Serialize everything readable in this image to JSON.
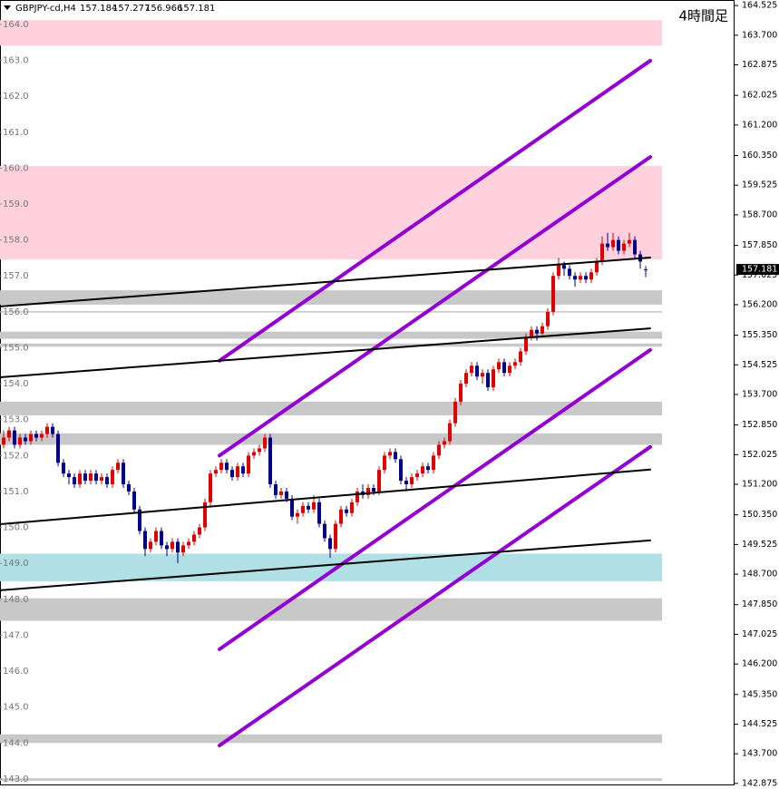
{
  "chart_data": {
    "type": "candlestick",
    "symbol": "GBPJPY-cd,H4",
    "timeframe_label": "4時間足",
    "ylim": [
      142.82,
      164.68
    ],
    "xlim": [
      -0.67,
      134.33
    ],
    "yticks": [
      164.525,
      {
        "value": 163.7,
        "label": "163.700"
      },
      162.875,
      162.025,
      {
        "value": 161.2,
        "label": "161.200"
      },
      {
        "value": 160.35,
        "label": "160.350"
      },
      159.525,
      {
        "value": 158.7,
        "label": "158.700"
      },
      {
        "value": 157.85,
        "label": "157.850"
      },
      157.025,
      {
        "value": 156.2,
        "label": "156.200"
      },
      {
        "value": 155.35,
        "label": "155.350"
      },
      154.525,
      {
        "value": 153.7,
        "label": "153.700"
      },
      {
        "value": 152.85,
        "label": "152.850"
      },
      152.025,
      {
        "value": 151.2,
        "label": "151.200"
      },
      {
        "value": 150.35,
        "label": "150.350"
      },
      149.525,
      {
        "value": 148.7,
        "label": "148.700"
      },
      {
        "value": 147.85,
        "label": "147.850"
      },
      147.025,
      {
        "value": 146.2,
        "label": "146.200"
      },
      {
        "value": 145.35,
        "label": "145.350"
      },
      144.525,
      {
        "value": 143.7,
        "label": "143.700"
      },
      142.875
    ],
    "inner_yticks": [
      {
        "value": 164,
        "label": "164.0"
      },
      {
        "value": 163,
        "label": "163.0"
      },
      {
        "value": 162,
        "label": "162.0"
      },
      {
        "value": 161,
        "label": "161.0"
      },
      {
        "value": 160,
        "label": "160.0"
      },
      {
        "value": 159,
        "label": "159.0"
      },
      {
        "value": 158,
        "label": "158.0"
      },
      {
        "value": 157,
        "label": "157.0"
      },
      {
        "value": 156,
        "label": "156.0"
      },
      {
        "value": 155,
        "label": "155.0"
      },
      {
        "value": 154,
        "label": "154.0"
      },
      {
        "value": 153,
        "label": "153.0"
      },
      {
        "value": 152,
        "label": "152.0"
      },
      {
        "value": 151,
        "label": "151.0"
      },
      {
        "value": 150,
        "label": "150.0"
      },
      {
        "value": 149,
        "label": "149.0"
      },
      {
        "value": 148,
        "label": "148.0"
      },
      {
        "value": 147,
        "label": "147.0"
      },
      {
        "value": 146,
        "label": "146.0"
      },
      {
        "value": 145,
        "label": "145.0"
      },
      {
        "value": 144,
        "label": "144.0"
      },
      {
        "value": 143,
        "label": "143.0"
      }
    ],
    "up_color": "#e00000",
    "down_color": "#00008b",
    "zones": [
      {
        "from": 163.41,
        "to": 164.12,
        "color": "#ffd1dc"
      },
      {
        "from": 157.46,
        "to": 160.06,
        "color": "#ffd1dc"
      },
      {
        "from": 156.2,
        "to": 156.6,
        "color": "#c8c8c8"
      },
      {
        "from": 155.98,
        "to": 156.02,
        "color": "#c8c8c8"
      },
      {
        "from": 155.25,
        "to": 155.45,
        "color": "#c8c8c8"
      },
      {
        "from": 155.03,
        "to": 155.12,
        "color": "#c8c8c8"
      },
      {
        "from": 153.12,
        "to": 153.5,
        "color": "#c8c8c8"
      },
      {
        "from": 152.3,
        "to": 152.62,
        "color": "#c8c8c8"
      },
      {
        "from": 148.5,
        "to": 149.27,
        "color": "#b0e0e6"
      },
      {
        "from": 147.4,
        "to": 148.03,
        "color": "#c8c8c8"
      },
      {
        "from": 144.0,
        "to": 144.24,
        "color": "#c8c8c8"
      },
      {
        "from": 142.95,
        "to": 143.02,
        "color": "#c8c8c8"
      }
    ],
    "lines": [
      {
        "points": [
          [
            39.67,
            154.64
          ],
          [
            118.83,
            162.99
          ]
        ],
        "color": "#9400d3",
        "width": 4
      },
      {
        "points": [
          [
            39.67,
            152.0
          ],
          [
            118.83,
            160.31
          ]
        ],
        "color": "#9400d3",
        "width": 4
      },
      {
        "points": [
          [
            39.67,
            146.61
          ],
          [
            118.83,
            154.94
          ]
        ],
        "color": "#9400d3",
        "width": 4
      },
      {
        "points": [
          [
            39.67,
            143.93
          ],
          [
            118.83,
            152.24
          ]
        ],
        "color": "#9400d3",
        "width": 4
      },
      {
        "points": [
          [
            -0.67,
            156.15
          ],
          [
            118.83,
            157.51
          ]
        ],
        "color": "#000000",
        "width": 2
      },
      {
        "points": [
          [
            -0.67,
            154.18
          ],
          [
            118.83,
            155.54
          ]
        ],
        "color": "#000000",
        "width": 2
      },
      {
        "points": [
          [
            -0.67,
            150.09
          ],
          [
            118.83,
            151.61
          ]
        ],
        "color": "#000000",
        "width": 2
      },
      {
        "points": [
          [
            -0.67,
            148.25
          ],
          [
            118.83,
            149.64
          ]
        ],
        "color": "#000000",
        "width": 2
      }
    ],
    "candles": [
      [
        152.3,
        152.7,
        152.2,
        152.5
      ],
      [
        152.5,
        152.8,
        152.4,
        152.7
      ],
      [
        152.7,
        152.8,
        152.2,
        152.3
      ],
      [
        152.3,
        152.6,
        152.2,
        152.5
      ],
      [
        152.5,
        152.6,
        152.3,
        152.4
      ],
      [
        152.4,
        152.7,
        152.3,
        152.6
      ],
      [
        152.6,
        152.7,
        152.4,
        152.5
      ],
      [
        152.5,
        152.7,
        152.4,
        152.6
      ],
      [
        152.6,
        152.9,
        152.5,
        152.8
      ],
      [
        152.8,
        152.9,
        152.5,
        152.6
      ],
      [
        152.6,
        152.7,
        151.7,
        151.8
      ],
      [
        151.8,
        151.9,
        151.4,
        151.5
      ],
      [
        151.5,
        151.6,
        151.2,
        151.4
      ],
      [
        151.4,
        151.5,
        151.1,
        151.2
      ],
      [
        151.2,
        151.6,
        151.1,
        151.5
      ],
      [
        151.5,
        151.6,
        151.2,
        151.3
      ],
      [
        151.3,
        151.6,
        151.2,
        151.5
      ],
      [
        151.5,
        151.6,
        151.2,
        151.3
      ],
      [
        151.3,
        151.5,
        151.2,
        151.4
      ],
      [
        151.4,
        151.5,
        151.1,
        151.2
      ],
      [
        151.2,
        151.7,
        151.1,
        151.6
      ],
      [
        151.6,
        151.9,
        151.5,
        151.8
      ],
      [
        151.8,
        151.9,
        151.1,
        151.2
      ],
      [
        151.2,
        151.3,
        150.9,
        151.0
      ],
      [
        151.0,
        151.1,
        150.4,
        150.5
      ],
      [
        150.5,
        150.6,
        149.8,
        149.9
      ],
      [
        149.9,
        150.0,
        149.2,
        149.4
      ],
      [
        149.4,
        149.7,
        149.3,
        149.6
      ],
      [
        149.6,
        150.0,
        149.5,
        149.9
      ],
      [
        149.9,
        150.0,
        149.4,
        149.5
      ],
      [
        149.5,
        149.6,
        149.2,
        149.4
      ],
      [
        149.4,
        149.7,
        149.3,
        149.6
      ],
      [
        149.6,
        149.7,
        149.0,
        149.3
      ],
      [
        149.3,
        149.6,
        149.2,
        149.5
      ],
      [
        149.5,
        149.7,
        149.4,
        149.6
      ],
      [
        149.6,
        149.9,
        149.5,
        149.8
      ],
      [
        149.8,
        150.1,
        149.7,
        150.0
      ],
      [
        150.0,
        150.8,
        149.9,
        150.7
      ],
      [
        150.7,
        151.6,
        150.6,
        151.5
      ],
      [
        151.5,
        151.7,
        151.4,
        151.6
      ],
      [
        151.6,
        151.9,
        151.5,
        151.8
      ],
      [
        151.8,
        151.9,
        151.5,
        151.6
      ],
      [
        151.6,
        151.7,
        151.3,
        151.4
      ],
      [
        151.4,
        151.8,
        151.3,
        151.7
      ],
      [
        151.7,
        151.8,
        151.4,
        151.5
      ],
      [
        151.5,
        152.1,
        151.4,
        152.0
      ],
      [
        152.0,
        152.2,
        151.9,
        152.1
      ],
      [
        152.1,
        152.3,
        152.0,
        152.2
      ],
      [
        152.2,
        152.6,
        152.1,
        152.5
      ],
      [
        152.5,
        152.6,
        151.1,
        151.2
      ],
      [
        151.2,
        151.3,
        150.8,
        150.9
      ],
      [
        150.9,
        151.1,
        150.8,
        151.0
      ],
      [
        151.0,
        151.1,
        150.7,
        150.8
      ],
      [
        150.8,
        150.9,
        150.2,
        150.3
      ],
      [
        150.3,
        150.5,
        150.1,
        150.4
      ],
      [
        150.4,
        150.7,
        150.3,
        150.6
      ],
      [
        150.6,
        150.7,
        150.4,
        150.5
      ],
      [
        150.5,
        150.9,
        150.4,
        150.7
      ],
      [
        150.7,
        150.8,
        150.0,
        150.1
      ],
      [
        150.1,
        150.2,
        149.6,
        149.7
      ],
      [
        149.7,
        149.8,
        149.15,
        149.4
      ],
      [
        149.4,
        150.2,
        149.3,
        150.1
      ],
      [
        150.1,
        150.6,
        150.0,
        150.5
      ],
      [
        150.5,
        150.6,
        150.3,
        150.4
      ],
      [
        150.4,
        150.8,
        150.3,
        150.7
      ],
      [
        150.7,
        151.1,
        150.6,
        151.0
      ],
      [
        151.0,
        151.2,
        150.8,
        150.9
      ],
      [
        150.9,
        151.2,
        150.8,
        151.1
      ],
      [
        151.1,
        151.2,
        150.9,
        151.0
      ],
      [
        151.0,
        151.7,
        150.9,
        151.6
      ],
      [
        151.6,
        152.1,
        151.5,
        152.0
      ],
      [
        152.0,
        152.2,
        151.9,
        152.1
      ],
      [
        152.1,
        152.2,
        151.8,
        151.9
      ],
      [
        151.9,
        152.0,
        151.2,
        151.3
      ],
      [
        151.3,
        151.4,
        151.0,
        151.2
      ],
      [
        151.2,
        151.5,
        151.1,
        151.4
      ],
      [
        151.4,
        151.6,
        151.3,
        151.5
      ],
      [
        151.5,
        151.8,
        151.4,
        151.7
      ],
      [
        151.7,
        151.8,
        151.5,
        151.6
      ],
      [
        151.6,
        152.1,
        151.5,
        152.0
      ],
      [
        152.0,
        152.4,
        151.9,
        152.3
      ],
      [
        152.3,
        152.5,
        152.2,
        152.4
      ],
      [
        152.4,
        153.0,
        152.3,
        152.9
      ],
      [
        152.9,
        153.6,
        152.8,
        153.5
      ],
      [
        153.5,
        154.1,
        153.4,
        154.0
      ],
      [
        154.0,
        154.4,
        153.9,
        154.3
      ],
      [
        154.3,
        154.6,
        154.2,
        154.5
      ],
      [
        154.5,
        154.6,
        154.1,
        154.2
      ],
      [
        154.2,
        154.4,
        154.0,
        154.3
      ],
      [
        154.3,
        154.4,
        153.8,
        153.9
      ],
      [
        153.9,
        154.5,
        153.8,
        154.4
      ],
      [
        154.4,
        154.7,
        154.3,
        154.6
      ],
      [
        154.6,
        154.7,
        154.2,
        154.3
      ],
      [
        154.3,
        154.6,
        154.2,
        154.5
      ],
      [
        154.5,
        154.7,
        154.4,
        154.6
      ],
      [
        154.6,
        155.0,
        154.5,
        154.9
      ],
      [
        154.9,
        155.4,
        154.8,
        155.3
      ],
      [
        155.3,
        155.6,
        155.2,
        155.5
      ],
      [
        155.5,
        155.6,
        155.2,
        155.4
      ],
      [
        155.4,
        155.7,
        155.3,
        155.6
      ],
      [
        155.6,
        156.1,
        155.5,
        156.0
      ],
      [
        156.0,
        157.1,
        155.9,
        157.0
      ],
      [
        157.0,
        157.5,
        156.9,
        157.3
      ],
      [
        157.3,
        157.4,
        157.0,
        157.2
      ],
      [
        157.2,
        157.3,
        156.9,
        157.0
      ],
      [
        157.0,
        157.1,
        156.7,
        156.9
      ],
      [
        156.9,
        157.1,
        156.8,
        157.0
      ],
      [
        157.0,
        157.1,
        156.8,
        156.9
      ],
      [
        156.9,
        157.2,
        156.8,
        157.1
      ],
      [
        157.1,
        157.5,
        157.0,
        157.4
      ],
      [
        157.4,
        158.1,
        157.3,
        157.9
      ],
      [
        157.9,
        158.2,
        157.7,
        157.8
      ],
      [
        157.8,
        158.2,
        157.7,
        158.0
      ],
      [
        158.0,
        158.1,
        157.6,
        157.7
      ],
      [
        157.7,
        158.0,
        157.6,
        157.9
      ],
      [
        157.9,
        158.2,
        157.8,
        158.0
      ],
      [
        158.0,
        158.1,
        157.5,
        157.6
      ],
      [
        157.6,
        157.7,
        157.2,
        157.4
      ],
      [
        157.184,
        157.277,
        156.966,
        157.181
      ]
    ]
  }
}
